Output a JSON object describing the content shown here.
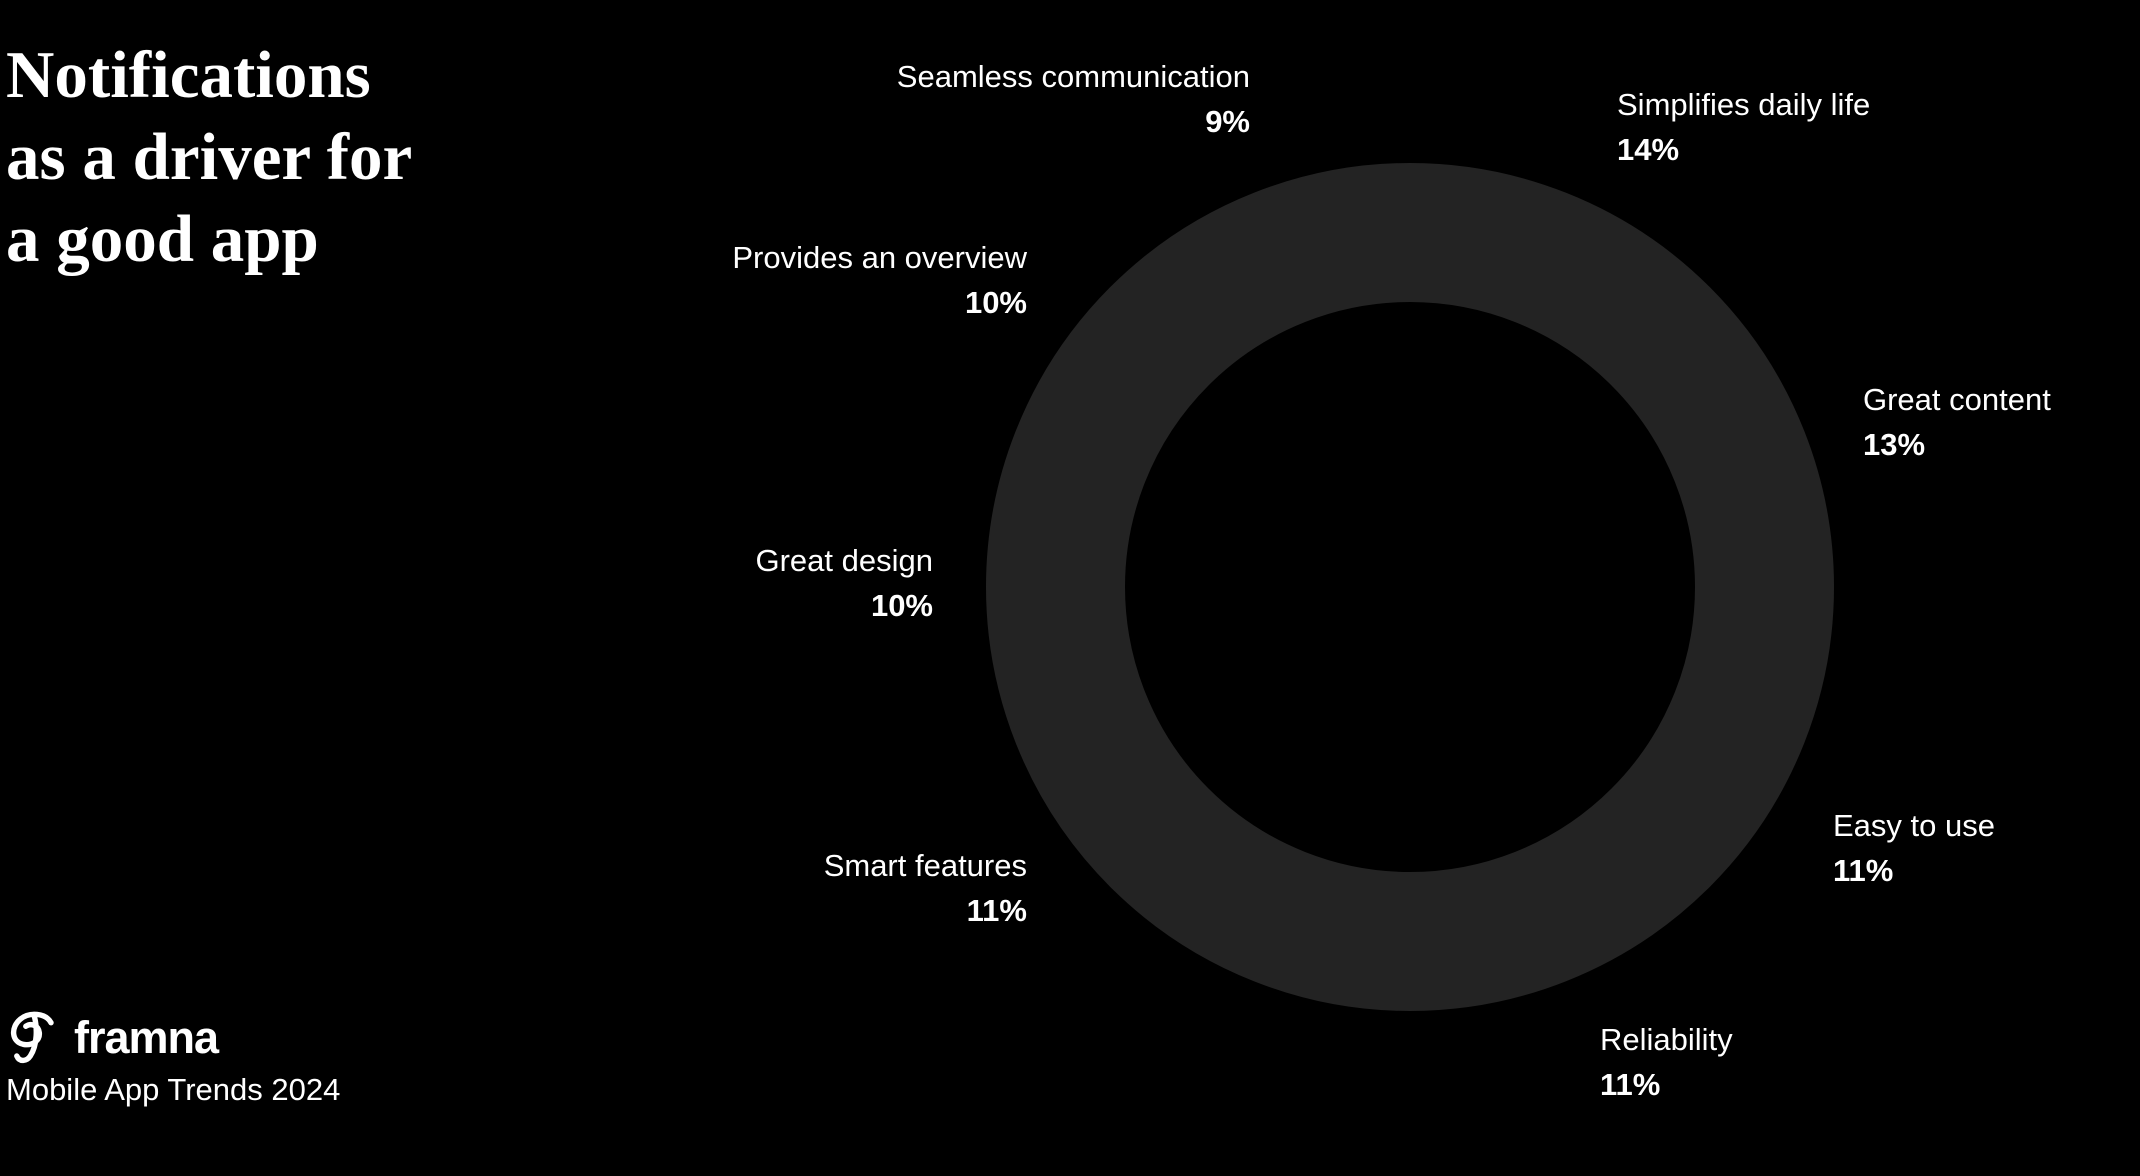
{
  "header": {
    "title_lines": [
      "Notifications",
      "as a driver for",
      "a good app"
    ]
  },
  "footer": {
    "brand": "framna",
    "subtitle": "Mobile App Trends 2024"
  },
  "chart_data": {
    "type": "pie",
    "variant": "donut",
    "title": "Notifications as a driver for a good app",
    "unit": "%",
    "segments": [
      {
        "label": "Seamless communication",
        "value": 9,
        "display": "9%"
      },
      {
        "label": "Simplifies daily life",
        "value": 14,
        "display": "14%"
      },
      {
        "label": "Great content",
        "value": 13,
        "display": "13%"
      },
      {
        "label": "Easy to use",
        "value": 11,
        "display": "11%"
      },
      {
        "label": "Reliability",
        "value": 11,
        "display": "11%"
      },
      {
        "label": "Smart features",
        "value": 11,
        "display": "11%"
      },
      {
        "label": "Great design",
        "value": 10,
        "display": "10%"
      },
      {
        "label": "Provides an overview",
        "value": 10,
        "display": "10%"
      }
    ],
    "colors": {
      "ring": "#232323",
      "background": "#000000",
      "text": "#ffffff"
    },
    "legend_position": "labels-around-ring",
    "segment_boundaries_visible": false
  }
}
